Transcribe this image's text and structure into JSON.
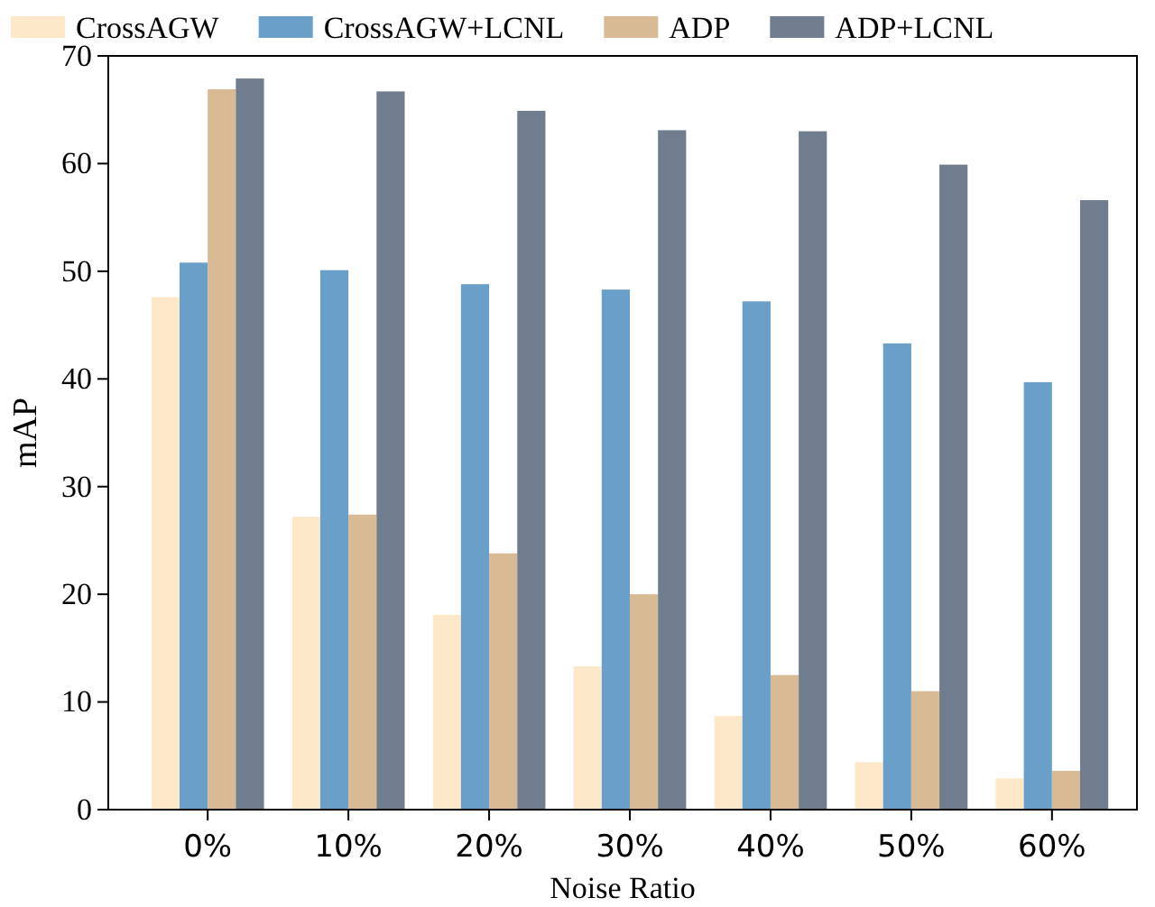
{
  "chart_data": {
    "type": "bar",
    "xlabel": "Noise Ratio",
    "ylabel": "mAP",
    "categories": [
      "0%",
      "10%",
      "20%",
      "30%",
      "40%",
      "50%",
      "60%"
    ],
    "series": [
      {
        "name": "CrossAGW",
        "color": "#fde9c9",
        "values": [
          47.6,
          27.2,
          18.1,
          13.3,
          8.7,
          4.4,
          2.9
        ]
      },
      {
        "name": "CrossAGW+LCNL",
        "color": "#6a9fc9",
        "values": [
          50.8,
          50.1,
          48.8,
          48.3,
          47.2,
          43.3,
          39.7
        ]
      },
      {
        "name": "ADP",
        "color": "#d8bb94",
        "values": [
          66.9,
          27.4,
          23.8,
          20.0,
          12.5,
          11.0,
          3.6
        ]
      },
      {
        "name": "ADP+LCNL",
        "color": "#6f7d8f",
        "values": [
          67.9,
          66.7,
          64.9,
          63.1,
          63.0,
          59.9,
          56.6
        ]
      }
    ],
    "ylim": [
      0,
      70
    ],
    "yticks": [
      0,
      10,
      20,
      30,
      40,
      50,
      60,
      70
    ],
    "grid": false,
    "legend": "top"
  }
}
